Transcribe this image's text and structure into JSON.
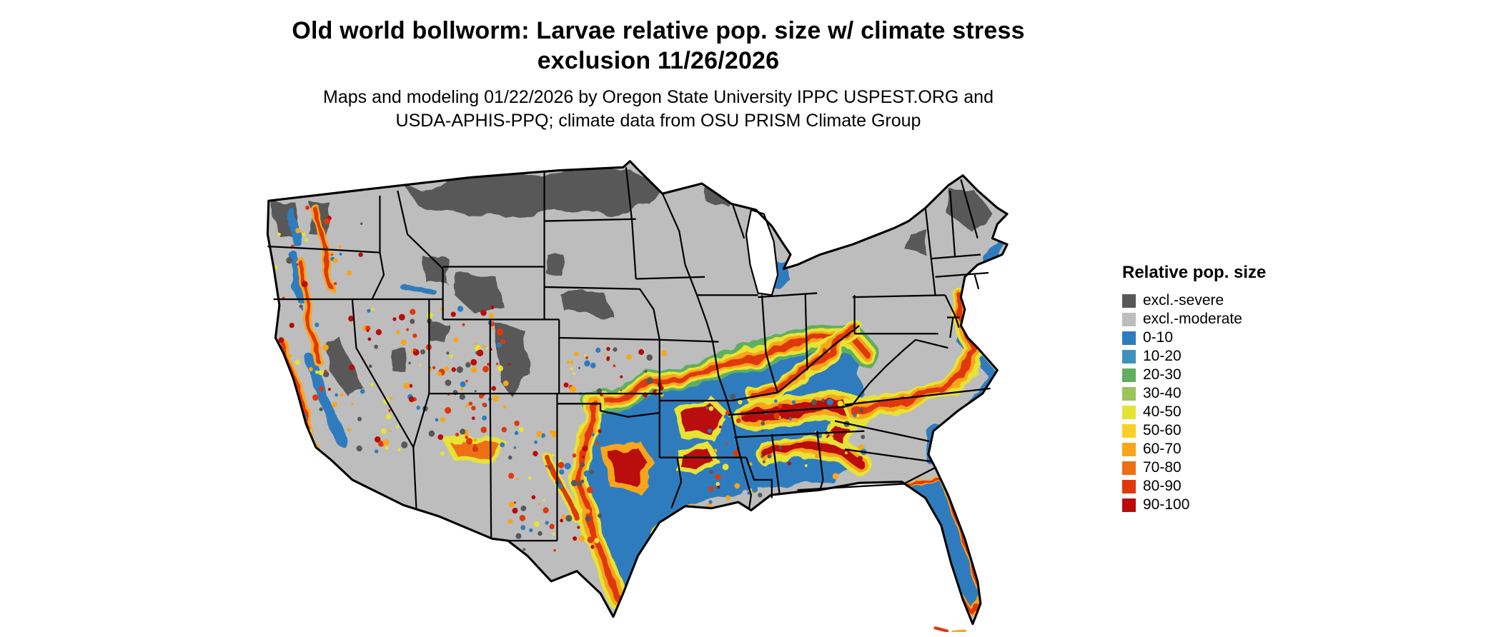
{
  "header": {
    "title_line1": "Old world bollworm: Larvae relative pop. size w/ climate stress",
    "title_line2": "exclusion 11/26/2026",
    "subtitle_line1": "Maps and modeling 01/22/2026 by Oregon State University IPPC USPEST.ORG and",
    "subtitle_line2": "USDA-APHIS-PPQ; climate data from OSU PRISM Climate Group"
  },
  "legend": {
    "title": "Relative pop. size",
    "items": [
      {
        "label": "excl.-severe",
        "color": "#585858"
      },
      {
        "label": "excl.-moderate",
        "color": "#bdbdbd"
      },
      {
        "label": "0-10",
        "color": "#2d7cbe"
      },
      {
        "label": "10-20",
        "color": "#3f93bb"
      },
      {
        "label": "20-30",
        "color": "#5fae62"
      },
      {
        "label": "30-40",
        "color": "#9cc45c"
      },
      {
        "label": "40-50",
        "color": "#e6e334"
      },
      {
        "label": "50-60",
        "color": "#fad026"
      },
      {
        "label": "60-70",
        "color": "#f7a61b"
      },
      {
        "label": "70-80",
        "color": "#ee7013"
      },
      {
        "label": "80-90",
        "color": "#e0380d"
      },
      {
        "label": "90-100",
        "color": "#ba0c0a"
      }
    ]
  }
}
